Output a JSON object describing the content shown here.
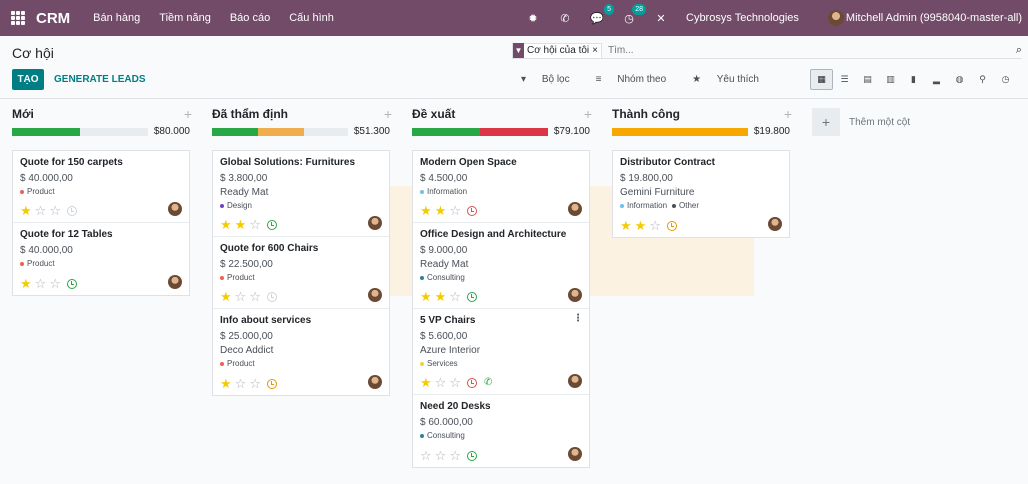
{
  "topbar": {
    "app_name": "CRM",
    "menu": [
      "Bán hàng",
      "Tiềm năng",
      "Báo cáo",
      "Cấu hình"
    ],
    "chat_badge": "5",
    "activity_badge": "28",
    "company": "Cybrosys Technologies",
    "user": "Mitchell Admin (9958040-master-all)"
  },
  "control": {
    "page_title": "Cơ hội",
    "facet_label": "Cơ hội của tôi",
    "facet_remove": "×",
    "search_placeholder": "Tìm...",
    "create_label": "TẠO",
    "leads_label": "GENERATE LEADS",
    "filters_label": "Bộ lọc",
    "groupby_label": "Nhóm theo",
    "favorites_label": "Yêu thích"
  },
  "add_column_label": "Thêm một cột",
  "columns": [
    {
      "title": "Mới",
      "total": "$80.000",
      "progress": [
        {
          "color": "#28a745",
          "fraction": 0.5
        },
        {
          "color": "#e9ecef",
          "fraction": 0.5
        }
      ],
      "cards": [
        {
          "title": "Quote for 150 carpets",
          "amount": "$ 40.000,00",
          "partner": "",
          "tags": [
            {
              "label": "Product",
              "color": "#f06050"
            }
          ],
          "stars": 1,
          "activity": "grey"
        },
        {
          "title": "Quote for 12 Tables",
          "amount": "$ 40.000,00",
          "partner": "",
          "tags": [
            {
              "label": "Product",
              "color": "#f06050"
            }
          ],
          "stars": 1,
          "activity": "green"
        }
      ]
    },
    {
      "title": "Đã thẩm định",
      "total": "$51.300",
      "progress": [
        {
          "color": "#28a745",
          "fraction": 0.34
        },
        {
          "color": "#f0ad4e",
          "fraction": 0.34
        },
        {
          "color": "#e9ecef",
          "fraction": 0.32
        }
      ],
      "cards": [
        {
          "title": "Global Solutions: Furnitures",
          "amount": "$ 3.800,00",
          "partner": "Ready Mat",
          "tags": [
            {
              "label": "Design",
              "color": "#6f42c1"
            }
          ],
          "stars": 2,
          "activity": "green"
        },
        {
          "title": "Quote for 600 Chairs",
          "amount": "$ 22.500,00",
          "partner": "",
          "tags": [
            {
              "label": "Product",
              "color": "#f06050"
            }
          ],
          "stars": 1,
          "activity": "grey"
        },
        {
          "title": "Info about services",
          "amount": "$ 25.000,00",
          "partner": "Deco Addict",
          "tags": [
            {
              "label": "Product",
              "color": "#f06050"
            }
          ],
          "stars": 1,
          "activity": "orange"
        }
      ]
    },
    {
      "title": "Đề xuất",
      "total": "$79.100",
      "progress": [
        {
          "color": "#28a745",
          "fraction": 0.5
        },
        {
          "color": "#dc3545",
          "fraction": 0.5
        }
      ],
      "cards": [
        {
          "title": "Modern Open Space",
          "amount": "$ 4.500,00",
          "partner": "",
          "tags": [
            {
              "label": "Information",
              "color": "#6cc1ed"
            }
          ],
          "stars": 2,
          "activity": "red"
        },
        {
          "title": "Office Design and Architecture",
          "amount": "$ 9.000,00",
          "partner": "Ready Mat",
          "tags": [
            {
              "label": "Consulting",
              "color": "#2c8397"
            }
          ],
          "stars": 2,
          "activity": "green"
        },
        {
          "title": "5 VP Chairs",
          "amount": "$ 5.600,00",
          "partner": "Azure Interior",
          "tags": [
            {
              "label": "Services",
              "color": "#f4d03f"
            }
          ],
          "stars": 1,
          "activity": "red",
          "phone": true,
          "menu": true
        },
        {
          "title": "Need 20 Desks",
          "amount": "$ 60.000,00",
          "partner": "",
          "tags": [
            {
              "label": "Consulting",
              "color": "#2c8397"
            }
          ],
          "stars": 0,
          "activity": "green"
        }
      ]
    },
    {
      "title": "Thành công",
      "total": "$19.800",
      "progress": [
        {
          "color": "#f7a800",
          "fraction": 1.0
        }
      ],
      "cards": [
        {
          "title": "Distributor Contract",
          "amount": "$ 19.800,00",
          "partner": "Gemini Furniture",
          "tags": [
            {
              "label": "Information",
              "color": "#6cc1ed"
            },
            {
              "label": "Other",
              "color": "#495057"
            }
          ],
          "stars": 2,
          "activity": "orange"
        }
      ]
    }
  ]
}
